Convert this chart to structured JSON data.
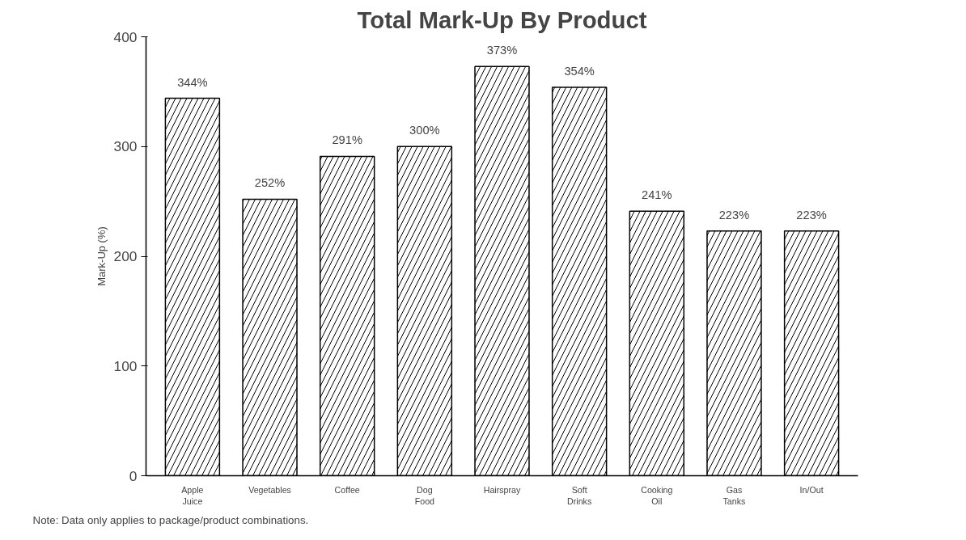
{
  "chart_data": {
    "type": "bar",
    "title": "Total Mark-Up By Product",
    "ylabel": "Mark-Up (%)",
    "categories": [
      "Apple Juice",
      "Vegetables",
      "Coffee",
      "Dog Food",
      "Hairspray",
      "Soft Drinks",
      "Cooking Oil",
      "Gas Tanks",
      "In/Out"
    ],
    "values": [
      344,
      252,
      291,
      300,
      373,
      354,
      241,
      223,
      223
    ],
    "value_labels": [
      "344%",
      "252%",
      "291%",
      "300%",
      "373%",
      "354%",
      "241%",
      "223%",
      "223%"
    ],
    "color": "#ffffff",
    "ylim": [
      0,
      400
    ],
    "yticks": [
      0,
      100,
      200,
      300,
      400
    ],
    "grid": false,
    "annotations": [
      "Note:  Data only applies to package/product combinations."
    ]
  }
}
